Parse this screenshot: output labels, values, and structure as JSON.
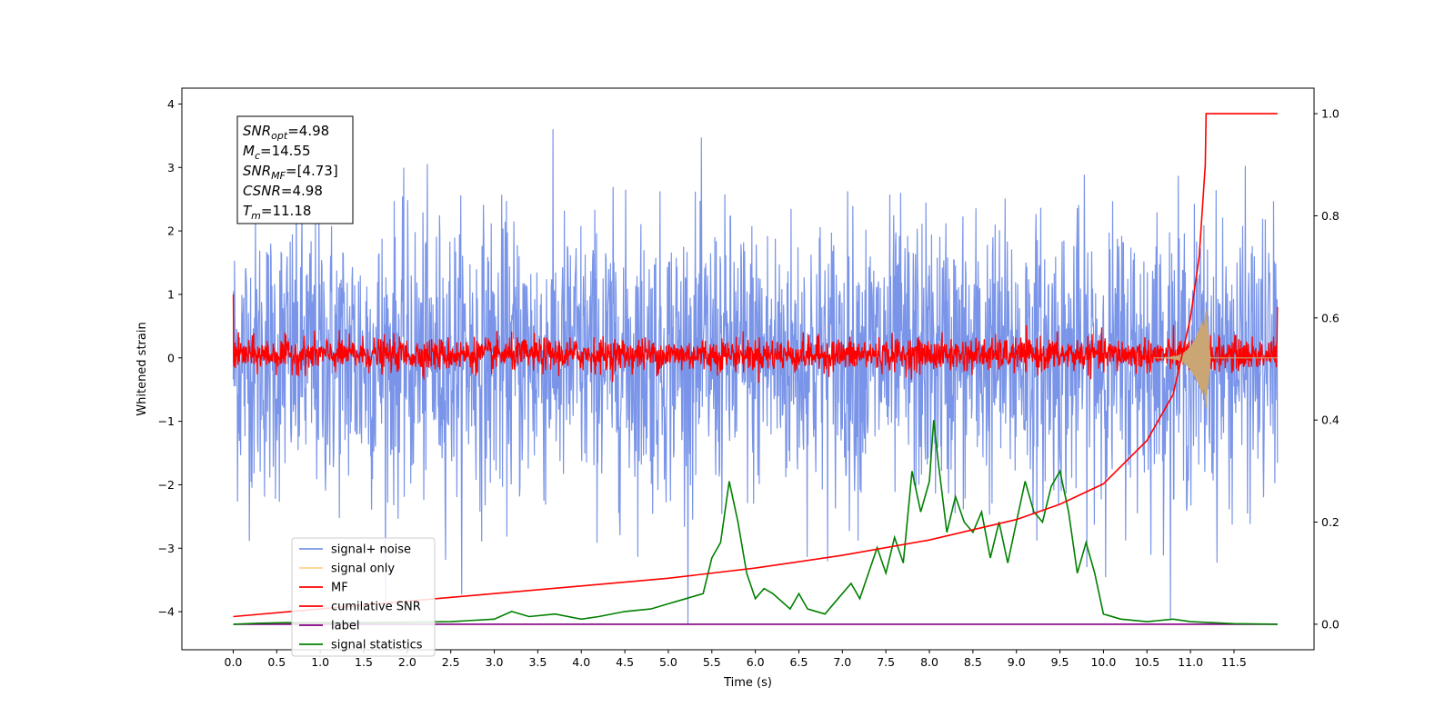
{
  "chart_data": {
    "type": "line",
    "title": "",
    "xlabel": "Time (s)",
    "ylabel": "Whitened strain",
    "y2label": "",
    "xlim": [
      -0.59,
      12.42
    ],
    "ylim": [
      -4.6,
      4.25
    ],
    "y2lim": [
      -0.05,
      1.05
    ],
    "x_ticks": [
      "0.0",
      "0.5",
      "1.0",
      "1.5",
      "2.0",
      "2.5",
      "3.0",
      "3.5",
      "4.0",
      "4.5",
      "5.0",
      "5.5",
      "6.0",
      "6.5",
      "7.0",
      "7.5",
      "8.0",
      "8.5",
      "9.0",
      "9.5",
      "10.0",
      "10.5",
      "11.0",
      "11.5"
    ],
    "y_ticks": [
      "−4",
      "−3",
      "−2",
      "−1",
      "0",
      "1",
      "2",
      "3",
      "4"
    ],
    "y2_ticks": [
      "0.0",
      "0.2",
      "0.4",
      "0.6",
      "0.8",
      "1.0"
    ],
    "grid": false,
    "legend_position": "lower-left",
    "info_box": {
      "lines": [
        {
          "main": "SNR",
          "sub": "opt",
          "rest": "=4.98"
        },
        {
          "main": "M",
          "sub": "c",
          "rest": "=14.55"
        },
        {
          "main": "SNR",
          "sub": "MF",
          "rest": "=[4.73]"
        },
        {
          "main": "CSNR",
          "sub": "",
          "rest": "=4.98"
        },
        {
          "main": "T",
          "sub": "m",
          "rest": "=11.18"
        }
      ]
    },
    "series": [
      {
        "name": "signal+ noise",
        "color": "#7994e8",
        "axis": "left",
        "x_range": [
          0,
          12
        ],
        "noise_std": 1.0,
        "ylim_clip": [
          -4.2,
          3.9
        ]
      },
      {
        "name": "signal only",
        "color": "#fdd28a",
        "axis": "left",
        "x_range": [
          0,
          12
        ],
        "chirp_peak_time": 11.18,
        "peak_amplitude": 0.8
      },
      {
        "name": "MF",
        "color": "#ff0000",
        "axis": "left",
        "x_range": [
          0,
          12
        ],
        "center": 0.05,
        "noise_std": 0.13,
        "start_value": 1.0
      },
      {
        "name": "cumilative SNR",
        "color": "#ff0000",
        "axis": "right",
        "x": [
          0,
          1,
          2,
          3,
          4,
          5,
          6,
          7,
          8,
          9,
          9.5,
          10,
          10.5,
          10.8,
          11.0,
          11.1,
          11.17,
          11.18,
          12
        ],
        "y": [
          0.015,
          0.03,
          0.045,
          0.06,
          0.075,
          0.09,
          0.11,
          0.135,
          0.165,
          0.205,
          0.235,
          0.275,
          0.36,
          0.45,
          0.6,
          0.72,
          0.9,
          1.0,
          1.0
        ]
      },
      {
        "name": "label",
        "color": "#800080",
        "axis": "right",
        "x": [
          0,
          12
        ],
        "y": [
          0,
          0
        ]
      },
      {
        "name": "signal statistics",
        "color": "#008000",
        "axis": "right",
        "x": [
          0,
          0.3,
          0.6,
          1.0,
          1.5,
          2.0,
          2.5,
          3.0,
          3.2,
          3.4,
          3.7,
          4.0,
          4.2,
          4.5,
          4.8,
          5.0,
          5.2,
          5.4,
          5.5,
          5.6,
          5.7,
          5.8,
          5.9,
          6.0,
          6.1,
          6.2,
          6.4,
          6.5,
          6.6,
          6.8,
          7.0,
          7.1,
          7.2,
          7.3,
          7.4,
          7.5,
          7.6,
          7.7,
          7.8,
          7.9,
          8.0,
          8.05,
          8.1,
          8.2,
          8.3,
          8.4,
          8.5,
          8.6,
          8.7,
          8.8,
          8.9,
          9.0,
          9.1,
          9.2,
          9.3,
          9.4,
          9.5,
          9.6,
          9.7,
          9.8,
          9.9,
          10.0,
          10.2,
          10.5,
          10.8,
          11.0,
          11.5,
          12.0
        ],
        "y": [
          0,
          0.002,
          0.003,
          0.003,
          0.003,
          0.004,
          0.005,
          0.01,
          0.025,
          0.015,
          0.02,
          0.01,
          0.015,
          0.025,
          0.03,
          0.04,
          0.05,
          0.06,
          0.13,
          0.16,
          0.28,
          0.2,
          0.1,
          0.05,
          0.07,
          0.06,
          0.03,
          0.06,
          0.03,
          0.02,
          0.06,
          0.08,
          0.05,
          0.1,
          0.15,
          0.1,
          0.17,
          0.12,
          0.3,
          0.22,
          0.28,
          0.4,
          0.32,
          0.18,
          0.25,
          0.2,
          0.18,
          0.22,
          0.13,
          0.2,
          0.12,
          0.2,
          0.28,
          0.22,
          0.2,
          0.27,
          0.3,
          0.22,
          0.1,
          0.16,
          0.1,
          0.02,
          0.01,
          0.005,
          0.01,
          0.005,
          0.001,
          0
        ]
      }
    ]
  }
}
